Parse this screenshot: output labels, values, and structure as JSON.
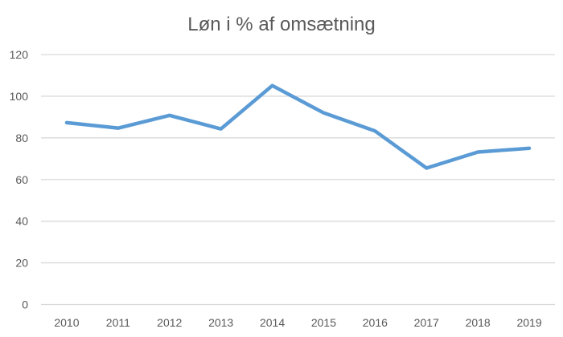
{
  "chart_data": {
    "type": "line",
    "title": "Løn i % af omsætning",
    "xlabel": "",
    "ylabel": "",
    "categories": [
      "2010",
      "2011",
      "2012",
      "2013",
      "2014",
      "2015",
      "2016",
      "2017",
      "2018",
      "2019"
    ],
    "series": [
      {
        "values": [
          87.3,
          84.7,
          90.8,
          84.3,
          105.1,
          92.0,
          83.3,
          65.5,
          73.2,
          75.0
        ],
        "color": "#5B9BD5"
      }
    ],
    "ylim": [
      0,
      120
    ],
    "yticks": [
      0,
      20,
      40,
      60,
      80,
      100,
      120
    ],
    "grid": true,
    "grid_color": "#D9D9D9",
    "legend": "none"
  }
}
